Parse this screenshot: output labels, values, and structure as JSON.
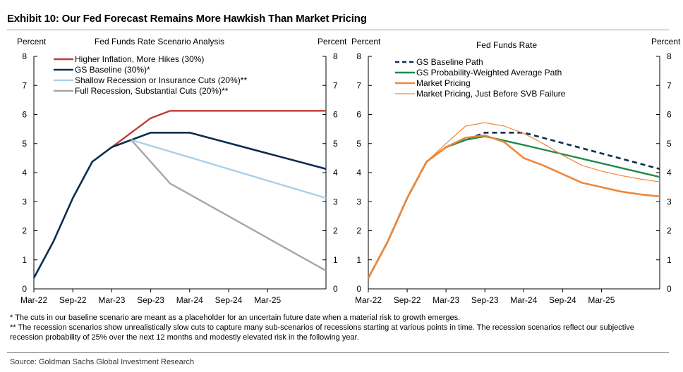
{
  "exhibit_title": "Exhibit 10: Our Fed Forecast Remains More Hawkish Than Market Pricing",
  "chart_data": [
    {
      "type": "line",
      "title": "Fed Funds Rate Scenario Analysis",
      "ylabel_left": "Percent",
      "ylabel_right": "Percent",
      "ylim": [
        0,
        8
      ],
      "yticks": [
        0,
        1,
        2,
        3,
        4,
        5,
        6,
        7,
        8
      ],
      "xticks": [
        "Mar-22",
        "Sep-22",
        "Mar-23",
        "Sep-23",
        "Mar-24",
        "Sep-24",
        "Mar-25"
      ],
      "x_start": "2022-03",
      "x_end": "2025-12",
      "legend_position": "top-left",
      "series": [
        {
          "name": "Higher Inflation, More Hikes (30%)",
          "color": "#c0393b",
          "width": 2.4,
          "dash": "",
          "x": [
            "2023-03",
            "2023-09",
            "2023-12",
            "2025-12"
          ],
          "y": [
            4.875,
            5.875,
            6.125,
            6.125
          ]
        },
        {
          "name": "GS Baseline (30%)*",
          "color": "#0b2d4f",
          "width": 2.6,
          "dash": "",
          "x": [
            "2022-03",
            "2022-06",
            "2022-09",
            "2022-12",
            "2023-03",
            "2023-06",
            "2023-09",
            "2024-03",
            "2025-12"
          ],
          "y": [
            0.375,
            1.625,
            3.125,
            4.375,
            4.875,
            5.125,
            5.375,
            5.375,
            4.125
          ]
        },
        {
          "name": "Shallow Recession or Insurance Cuts (20%)**",
          "color": "#a9d0ea",
          "width": 2.4,
          "dash": "",
          "x": [
            "2023-06",
            "2025-12"
          ],
          "y": [
            5.125,
            3.125
          ]
        },
        {
          "name": "Full Recession, Substantial Cuts (20%)**",
          "color": "#a6a6a6",
          "width": 2.4,
          "dash": "",
          "x": [
            "2023-06",
            "2023-12",
            "2025-12"
          ],
          "y": [
            5.125,
            3.625,
            0.625
          ]
        }
      ]
    },
    {
      "type": "line",
      "title": "Fed Funds Rate",
      "ylabel_left": "Percent",
      "ylabel_right": "Percent",
      "ylim": [
        0,
        8
      ],
      "yticks": [
        0,
        1,
        2,
        3,
        4,
        5,
        6,
        7,
        8
      ],
      "xticks": [
        "Mar-22",
        "Sep-22",
        "Mar-23",
        "Sep-23",
        "Mar-24",
        "Sep-24",
        "Mar-25"
      ],
      "x_start": "2022-03",
      "x_end": "2025-12",
      "legend_position": "top-left",
      "series": [
        {
          "name": "GS Baseline Path",
          "color": "#0b2d4f",
          "width": 2.6,
          "dash": "7,5",
          "x": [
            "2022-03",
            "2022-06",
            "2022-09",
            "2022-12",
            "2023-03",
            "2023-06",
            "2023-09",
            "2024-03",
            "2025-12"
          ],
          "y": [
            0.375,
            1.625,
            3.125,
            4.375,
            4.875,
            5.125,
            5.375,
            5.375,
            4.125
          ]
        },
        {
          "name": "GS Probability-Weighted Average Path",
          "color": "#1e8a4c",
          "width": 2.4,
          "dash": "",
          "x": [
            "2022-03",
            "2022-06",
            "2022-09",
            "2022-12",
            "2023-03",
            "2023-06",
            "2023-09",
            "2024-03",
            "2025-12"
          ],
          "y": [
            0.375,
            1.625,
            3.125,
            4.375,
            4.875,
            5.125,
            5.25,
            4.95,
            3.85
          ]
        },
        {
          "name": "Market Pricing",
          "color": "#f0873a",
          "width": 2.6,
          "dash": "",
          "x": [
            "2022-03",
            "2022-06",
            "2022-09",
            "2022-12",
            "2023-03",
            "2023-06",
            "2023-09",
            "2023-12",
            "2024-03",
            "2024-06",
            "2024-09",
            "2024-12",
            "2025-03",
            "2025-06",
            "2025-09",
            "2025-12"
          ],
          "y": [
            0.375,
            1.625,
            3.125,
            4.375,
            4.875,
            5.2,
            5.28,
            5.05,
            4.5,
            4.25,
            3.95,
            3.65,
            3.5,
            3.35,
            3.25,
            3.18
          ]
        },
        {
          "name": "Market Pricing, Just Before SVB Failure",
          "color": "#f0873a",
          "width": 1.2,
          "dash": "",
          "x": [
            "2022-03",
            "2022-06",
            "2022-09",
            "2022-12",
            "2023-03",
            "2023-06",
            "2023-09",
            "2023-12",
            "2024-03",
            "2024-06",
            "2024-09",
            "2024-12",
            "2025-03",
            "2025-06",
            "2025-09",
            "2025-12"
          ],
          "y": [
            0.375,
            1.625,
            3.125,
            4.375,
            5.0,
            5.6,
            5.72,
            5.6,
            5.35,
            5.0,
            4.6,
            4.25,
            4.05,
            3.9,
            3.78,
            3.68
          ]
        }
      ]
    }
  ],
  "footnotes": [
    "* The cuts in our baseline scenario are meant as a placeholder for an uncertain future date when a material risk to growth emerges.",
    "** The recession scenarios show unrealistically slow cuts to capture many sub-scenarios of recessions starting at various points in time.  The recession scenarios reflect our subjective recession probability of 25% over the next 12 months and modestly elevated risk in the following year."
  ],
  "source": "Source: Goldman Sachs Global Investment Research"
}
